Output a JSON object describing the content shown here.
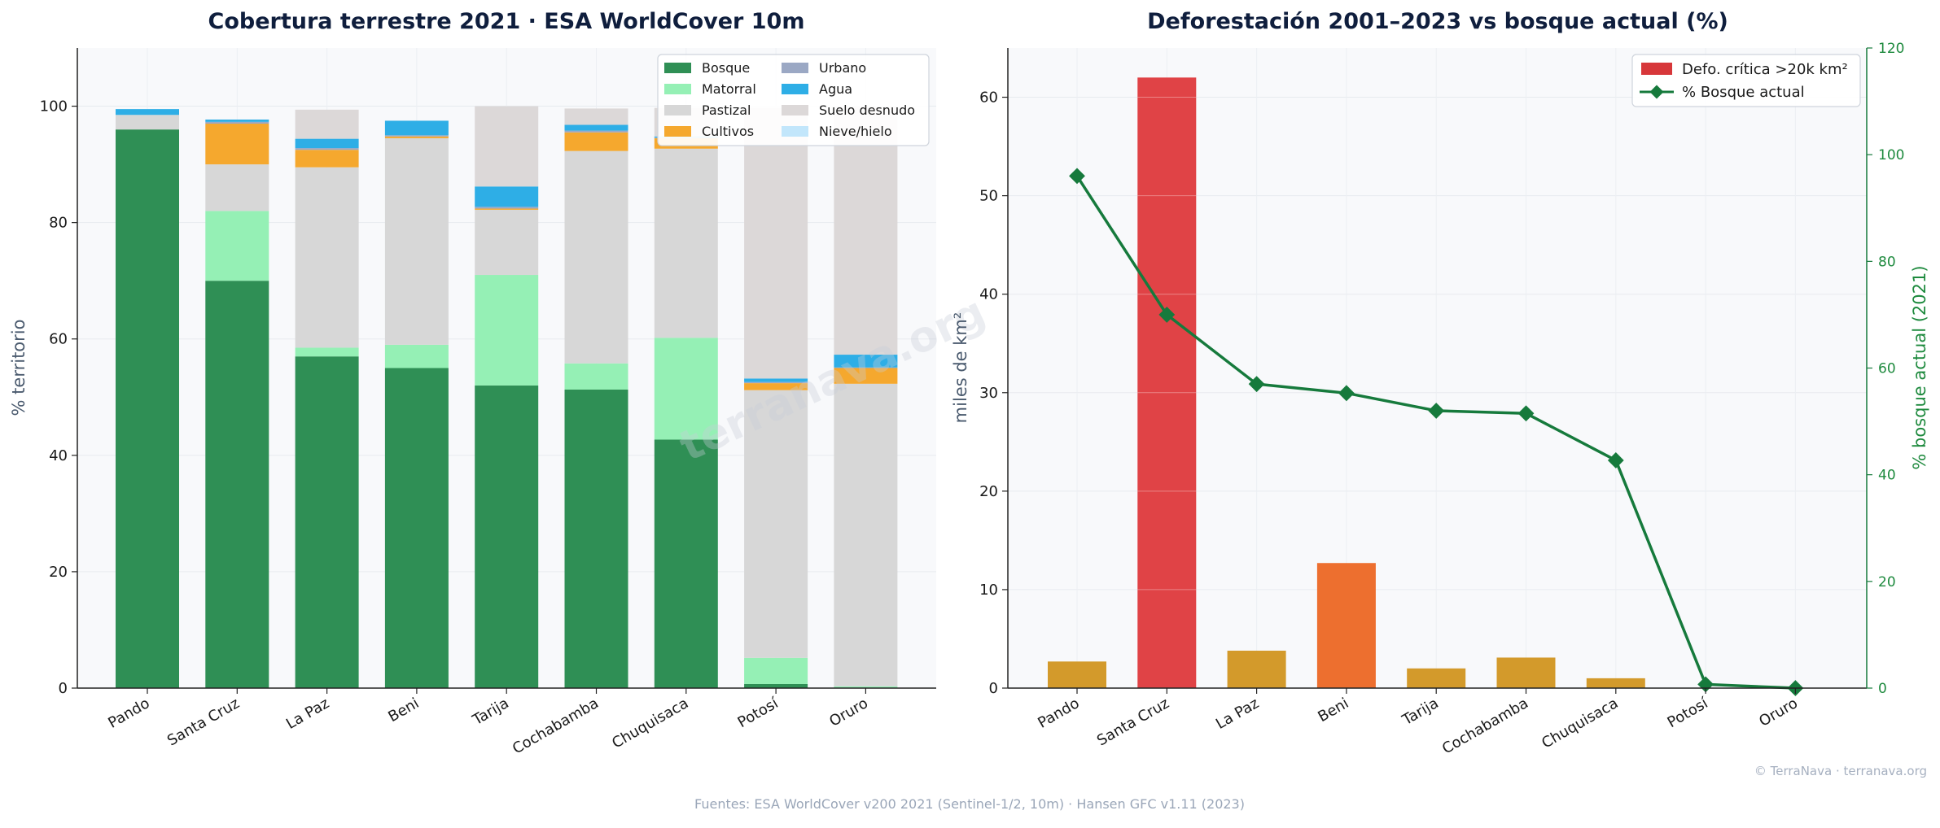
{
  "watermark": "terranava.org",
  "footer": "Fuentes: ESA WorldCover v200 2021 (Sentinel-1/2, 10m) · Hansen GFC v1.11 (2023)",
  "credit": "© TerraNava · terranava.org",
  "colors": {
    "Bosque": "#2f8f55",
    "Matorral": "#95f0b5",
    "Pastizal": "#d7d7d7",
    "Cultivos": "#f5a82e",
    "Urbano": "#9ba8c4",
    "Agua": "#2eaee6",
    "Suelo desnudo": "#dcd8d8",
    "Nieve/hielo": "#c2e6fb",
    "critical": "#e04346",
    "high": "#ed6f2f",
    "normal": "#d39a2b",
    "line": "#167a3c"
  },
  "chart_data": [
    {
      "type": "bar",
      "stacked": true,
      "title": "Cobertura terrestre 2021 · ESA WorldCover 10m",
      "xlabel": "",
      "ylabel": "% territorio",
      "ylim": [
        0,
        110
      ],
      "yticks": [
        0,
        20,
        40,
        60,
        80,
        100
      ],
      "grid": true,
      "legend_position": "top-right",
      "categories": [
        "Pando",
        "Santa Cruz",
        "La Paz",
        "Beni",
        "Tarija",
        "Cochabamba",
        "Chuquisaca",
        "Potosí",
        "Oruro"
      ],
      "series": [
        {
          "name": "Bosque",
          "values": [
            96,
            70,
            57,
            55,
            52,
            51.3,
            42.7,
            0.7,
            0
          ]
        },
        {
          "name": "Matorral",
          "values": [
            0,
            12,
            1.5,
            4,
            19,
            4.5,
            17.5,
            4.5,
            0.3
          ]
        },
        {
          "name": "Pastizal",
          "values": [
            2.5,
            8,
            31,
            35.5,
            11.2,
            36.5,
            32.5,
            46,
            52
          ]
        },
        {
          "name": "Cultivos",
          "values": [
            0,
            7,
            3,
            0.3,
            0.2,
            3.2,
            1.8,
            1.2,
            2.7
          ]
        },
        {
          "name": "Urbano",
          "values": [
            0,
            0.3,
            0.3,
            0.2,
            0.3,
            0.3,
            0.1,
            0.2,
            0.1
          ]
        },
        {
          "name": "Agua",
          "values": [
            1,
            0.4,
            1.6,
            2.5,
            3.5,
            1,
            0.2,
            0.6,
            2.2
          ]
        },
        {
          "name": "Suelo desnudo",
          "values": [
            0,
            0,
            5,
            0,
            13.8,
            2.8,
            4.9,
            46.5,
            42.7
          ]
        },
        {
          "name": "Nieve/hielo",
          "values": [
            0,
            0,
            0,
            0,
            0,
            0,
            0,
            0,
            0
          ]
        }
      ]
    },
    {
      "type": "bar",
      "title": "Deforestación 2001–2023 vs bosque actual (%)",
      "xlabel": "",
      "ylabel": "miles de km²",
      "ylim": [
        0,
        65
      ],
      "yticks": [
        0,
        10,
        20,
        30,
        40,
        50,
        60
      ],
      "y2label": "% bosque actual (2021)",
      "y2lim": [
        0,
        120
      ],
      "y2ticks": [
        0,
        20,
        40,
        60,
        80,
        100,
        120
      ],
      "grid": true,
      "legend_position": "top-right",
      "categories": [
        "Pando",
        "Santa Cruz",
        "La Paz",
        "Beni",
        "Tarija",
        "Cochabamba",
        "Chuquisaca",
        "Potosí",
        "Oruro"
      ],
      "series": [
        {
          "name": "Defo. crítica >20k km²",
          "kind": "bar",
          "values": [
            2.7,
            62,
            3.8,
            12.7,
            2,
            3.1,
            1,
            0,
            0
          ],
          "levels": [
            "normal",
            "critical",
            "normal",
            "high",
            "normal",
            "normal",
            "normal",
            "normal",
            "normal"
          ]
        },
        {
          "name": "% Bosque actual",
          "kind": "line",
          "axis": "y2",
          "values": [
            96,
            70,
            57,
            55.3,
            52,
            51.5,
            42.7,
            0.7,
            0
          ]
        }
      ]
    }
  ]
}
